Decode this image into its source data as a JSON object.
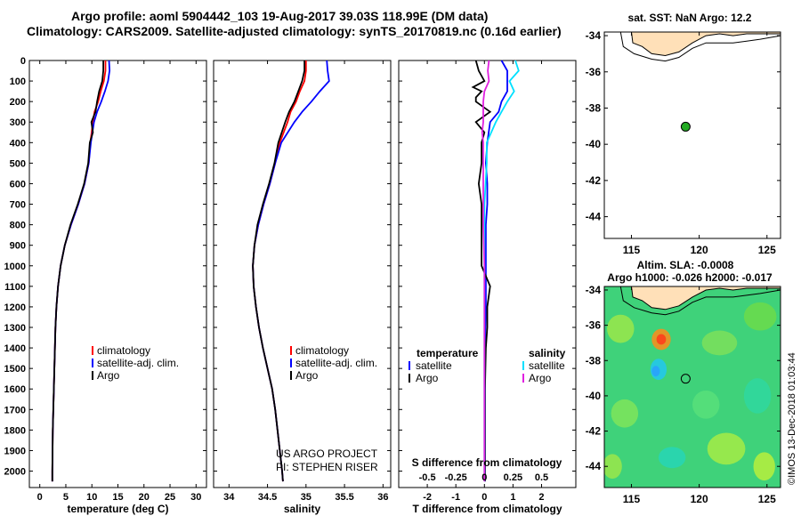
{
  "header": {
    "line1": "Argo profile: aoml 5904442_103 19-Aug-2017 39.03S 118.99E (DM data)",
    "line2": "Climatology: CARS2009. Satellite-adjusted climatology: synTS_20170819.nc (0.16d earlier)"
  },
  "colors": {
    "climatology": "#ff0000",
    "satellite": "#0000ff",
    "argo": "#000000",
    "sat_salinity": "#00e0ff",
    "argo_salinity": "#e020e0",
    "float_marker": "#22aa22"
  },
  "map_top": {
    "title": "sat. SST: NaN Argo: 12.2",
    "float_lon": 119.0,
    "float_lat": -39.03,
    "xticks": [
      115,
      120,
      125
    ],
    "yticks": [
      -34,
      -36,
      -38,
      -40,
      -42,
      -44
    ],
    "xlim": [
      113,
      126
    ],
    "ylim": [
      -45.2,
      -33.8
    ]
  },
  "map_bottom": {
    "title1": "Altim. SLA: -0.0008",
    "title2": "Argo h1000: -0.026 h2000: -0.017",
    "xticks": [
      115,
      120,
      125
    ],
    "yticks": [
      -34,
      -36,
      -38,
      -40,
      -42,
      -44
    ],
    "xlim": [
      113,
      126
    ],
    "ylim": [
      -45.2,
      -33.8
    ],
    "side_label": "©IMOS 13-Dec-2018 01:03:44"
  },
  "chart_data": [
    {
      "type": "line",
      "xlabel": "temperature (deg C)",
      "xticks": [
        0,
        5,
        10,
        15,
        20,
        25,
        30
      ],
      "xlim": [
        -2,
        32
      ],
      "ylim": [
        2080,
        0
      ],
      "yticks": [
        0,
        100,
        200,
        300,
        400,
        500,
        600,
        700,
        800,
        900,
        1000,
        1100,
        1200,
        1300,
        1400,
        1500,
        1600,
        1700,
        1800,
        1900,
        2000
      ],
      "legend": [
        "climatology",
        "satellite-adj. clim.",
        "Argo"
      ],
      "series": [
        {
          "name": "climatology",
          "color": "#ff0000",
          "depth": [
            0,
            50,
            100,
            150,
            200,
            250,
            300,
            400,
            500,
            600,
            700,
            800,
            900,
            1000,
            1100,
            1200,
            1300,
            1400,
            1600,
            1800,
            2000,
            2050
          ],
          "values": [
            12.6,
            12.6,
            12.3,
            11.7,
            11.2,
            10.5,
            10.2,
            9.7,
            9.4,
            8.6,
            7.4,
            6.0,
            4.8,
            4.0,
            3.5,
            3.2,
            3.0,
            2.9,
            2.7,
            2.5,
            2.4,
            2.4
          ]
        },
        {
          "name": "satellite-adj. clim.",
          "color": "#0000ff",
          "depth": [
            0,
            50,
            100,
            150,
            200,
            250,
            300,
            400,
            500,
            600,
            700,
            800,
            900,
            1000,
            1100,
            1200,
            1300,
            1400,
            1600,
            1800,
            2000,
            2050
          ],
          "values": [
            13.3,
            13.4,
            13.1,
            12.5,
            11.8,
            11.0,
            10.4,
            9.8,
            9.4,
            8.6,
            7.4,
            6.0,
            4.8,
            4.0,
            3.5,
            3.2,
            3.0,
            2.9,
            2.7,
            2.5,
            2.4,
            2.4
          ]
        },
        {
          "name": "Argo",
          "color": "#000000",
          "depth": [
            0,
            50,
            100,
            150,
            200,
            250,
            300,
            350,
            400,
            500,
            600,
            700,
            800,
            900,
            1000,
            1100,
            1200,
            1300,
            1400,
            1600,
            1800,
            2000,
            2050
          ],
          "values": [
            12.2,
            12.2,
            12.0,
            11.4,
            11.0,
            10.7,
            9.9,
            10.2,
            9.6,
            9.3,
            8.5,
            7.3,
            5.9,
            4.8,
            4.0,
            3.5,
            3.2,
            3.0,
            2.9,
            2.7,
            2.5,
            2.4,
            2.4
          ]
        }
      ]
    },
    {
      "type": "line",
      "xlabel": "salinity",
      "xticks": [
        34,
        34.5,
        35,
        35.5,
        36
      ],
      "xlim": [
        33.8,
        36.1
      ],
      "ylim": [
        2080,
        0
      ],
      "legend": [
        "climatology",
        "satellite-adj. clim.",
        "Argo"
      ],
      "credit1": "US ARGO PROJECT",
      "credit2": "PI: STEPHEN RISER",
      "series": [
        {
          "name": "climatology",
          "color": "#ff0000",
          "depth": [
            0,
            50,
            100,
            150,
            200,
            250,
            300,
            400,
            500,
            600,
            700,
            800,
            900,
            1000,
            1100,
            1200,
            1300,
            1400,
            1500,
            1600,
            1700,
            1800,
            1900,
            2000,
            2050
          ],
          "values": [
            35.0,
            35.0,
            34.98,
            34.92,
            34.87,
            34.8,
            34.76,
            34.66,
            34.6,
            34.53,
            34.45,
            34.38,
            34.33,
            34.31,
            34.32,
            34.35,
            34.39,
            34.44,
            34.5,
            34.56,
            34.6,
            34.63,
            34.66,
            34.69,
            34.7
          ]
        },
        {
          "name": "satellite-adj. clim.",
          "color": "#0000ff",
          "depth": [
            0,
            50,
            100,
            150,
            200,
            250,
            300,
            400,
            500,
            600,
            700,
            800,
            900,
            1000,
            1100,
            1200,
            1300,
            1400,
            1500,
            1600,
            1700,
            1800,
            1900,
            2000,
            2050
          ],
          "values": [
            35.27,
            35.28,
            35.3,
            35.18,
            35.07,
            34.95,
            34.85,
            34.68,
            34.6,
            34.53,
            34.45,
            34.38,
            34.33,
            34.31,
            34.32,
            34.35,
            34.39,
            34.44,
            34.5,
            34.56,
            34.6,
            34.63,
            34.66,
            34.69,
            34.7
          ]
        },
        {
          "name": "Argo",
          "color": "#000000",
          "depth": [
            0,
            50,
            100,
            150,
            200,
            250,
            300,
            400,
            500,
            600,
            700,
            800,
            900,
            1000,
            1100,
            1200,
            1300,
            1400,
            1500,
            1600,
            1700,
            1800,
            1900,
            2000,
            2050
          ],
          "values": [
            34.98,
            34.98,
            34.95,
            34.9,
            34.85,
            34.78,
            34.73,
            34.64,
            34.59,
            34.52,
            34.44,
            34.37,
            34.33,
            34.31,
            34.32,
            34.35,
            34.39,
            34.44,
            34.5,
            34.56,
            34.6,
            34.63,
            34.66,
            34.69,
            34.7
          ]
        }
      ]
    },
    {
      "type": "line",
      "xlabel": "T difference from climatology",
      "xticks": [
        -2,
        -1,
        0,
        1,
        2
      ],
      "xlim": [
        -3,
        3.2
      ],
      "s_xlabel": "S difference from climatology",
      "s_xtick_labels": [
        "-0.5",
        "-0.25",
        "0",
        "0.25",
        "0.5"
      ],
      "ylim": [
        2080,
        0
      ],
      "legend_left_title": "temperature",
      "legend_left": [
        "satellite",
        "Argo"
      ],
      "legend_right_title": "salinity",
      "legend_right": [
        "satellite",
        "Argo"
      ],
      "series": [
        {
          "name": "temperature satellite",
          "color": "#0000ff",
          "depth": [
            0,
            50,
            100,
            150,
            200,
            250,
            300,
            400,
            500,
            600,
            700,
            800,
            900,
            1000,
            1200,
            1400,
            1600,
            1800,
            2000,
            2050
          ],
          "values": [
            0.6,
            0.8,
            0.8,
            0.8,
            0.6,
            0.5,
            0.2,
            0.1,
            0.05,
            0.1,
            0.1,
            0.05,
            0.05,
            0.05,
            0.05,
            0.02,
            0.02,
            0.02,
            0.02,
            0.02
          ]
        },
        {
          "name": "temperature Argo",
          "color": "#000000",
          "depth": [
            0,
            50,
            100,
            130,
            150,
            180,
            200,
            250,
            300,
            350,
            400,
            500,
            600,
            700,
            800,
            900,
            1000,
            1100,
            1200,
            1300,
            1400,
            1600,
            1800,
            2000,
            2050
          ],
          "values": [
            -0.3,
            -0.2,
            0.0,
            -0.4,
            -0.1,
            -0.3,
            -0.3,
            0.2,
            -0.3,
            0.0,
            -0.1,
            -0.1,
            -0.2,
            -0.1,
            -0.1,
            -0.1,
            -0.1,
            0.2,
            0.1,
            0.1,
            0.05,
            0.02,
            0.02,
            0.02,
            0.02
          ]
        },
        {
          "name": "salinity satellite",
          "color": "#00e0ff",
          "depth": [
            0,
            50,
            100,
            150,
            200,
            250,
            300,
            400,
            500,
            600,
            700,
            800,
            900,
            1000,
            1200,
            1400,
            1600,
            1800,
            2000,
            2050
          ],
          "values": [
            0.27,
            0.3,
            0.22,
            0.26,
            0.2,
            0.15,
            0.1,
            0.02,
            0.02,
            0.01,
            0.0,
            0.0,
            0.0,
            0.0,
            0.0,
            0.0,
            0.0,
            0.0,
            0.0,
            0.0
          ]
        },
        {
          "name": "salinity Argo",
          "color": "#e020e0",
          "depth": [
            0,
            50,
            100,
            150,
            200,
            250,
            300,
            350,
            400,
            500,
            600,
            700,
            800,
            1000,
            1200,
            1400,
            1600,
            1800,
            2000,
            2050
          ],
          "values": [
            0.04,
            0.03,
            0.04,
            0.0,
            -0.01,
            -0.01,
            -0.01,
            -0.02,
            -0.01,
            -0.01,
            -0.01,
            -0.01,
            -0.01,
            0.0,
            0.0,
            0.0,
            0.0,
            0.0,
            0.0,
            0.0
          ]
        }
      ]
    }
  ]
}
